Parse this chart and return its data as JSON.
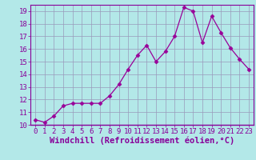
{
  "x": [
    0,
    1,
    2,
    3,
    4,
    5,
    6,
    7,
    8,
    9,
    10,
    11,
    12,
    13,
    14,
    15,
    16,
    17,
    18,
    19,
    20,
    21,
    22,
    23
  ],
  "y": [
    10.4,
    10.2,
    10.7,
    11.5,
    11.7,
    11.7,
    11.7,
    11.7,
    12.3,
    13.2,
    14.4,
    15.5,
    16.3,
    15.0,
    15.8,
    17.0,
    19.3,
    19.0,
    16.5,
    18.6,
    17.3,
    16.1,
    15.2,
    14.4
  ],
  "xlabel": "Windchill (Refroidissement éolien,°C)",
  "ylim": [
    10,
    19.5
  ],
  "xlim": [
    -0.5,
    23.5
  ],
  "line_color": "#990099",
  "marker": "D",
  "marker_size": 2.5,
  "bg_color": "#b3e8e8",
  "grid_color": "#9999bb",
  "yticks": [
    10,
    11,
    12,
    13,
    14,
    15,
    16,
    17,
    18,
    19
  ],
  "xticks": [
    0,
    1,
    2,
    3,
    4,
    5,
    6,
    7,
    8,
    9,
    10,
    11,
    12,
    13,
    14,
    15,
    16,
    17,
    18,
    19,
    20,
    21,
    22,
    23
  ],
  "tick_color": "#880099",
  "tick_fontsize": 6.5,
  "xlabel_fontsize": 7.5,
  "spine_color": "#880099"
}
